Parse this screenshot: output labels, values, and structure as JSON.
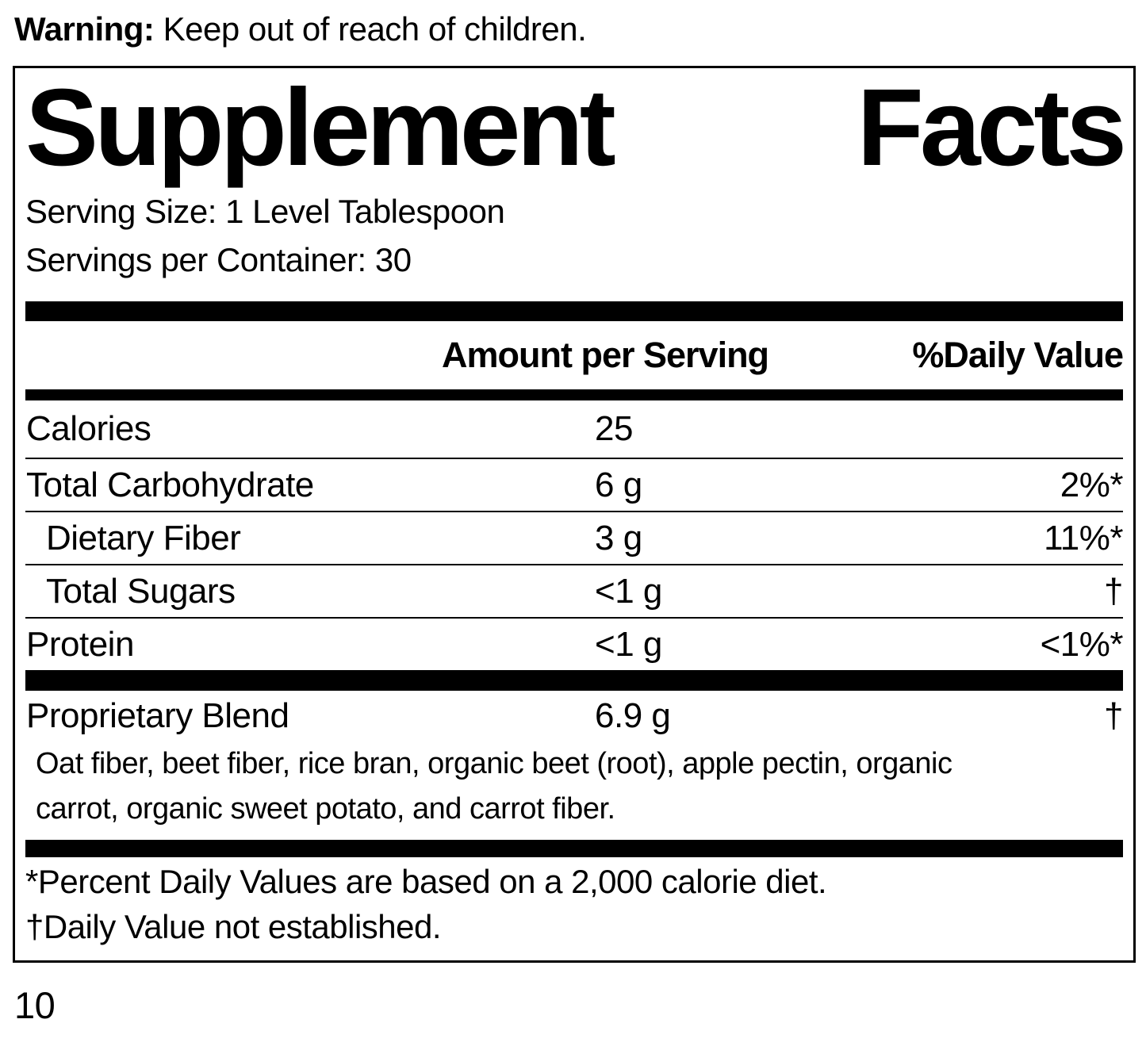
{
  "colors": {
    "text": "#000000",
    "background": "#ffffff"
  },
  "warning": {
    "label": "Warning:",
    "text": " Keep out of reach of children."
  },
  "panel": {
    "title_word1": "Supplement",
    "title_word2": "Facts",
    "serving_size": "Serving Size: 1 Level Tablespoon",
    "servings_per_container": "Servings per Container: 30",
    "columns": {
      "amount": "Amount per Serving",
      "daily_value": "%Daily Value"
    },
    "rows": [
      {
        "label": "Calories",
        "amount": "25",
        "dv": ""
      },
      {
        "label": "Total Carbohydrate",
        "amount": "6 g",
        "dv": "2%*"
      },
      {
        "label": "Dietary Fiber",
        "amount": "3 g",
        "dv": "11%*"
      },
      {
        "label": "Total Sugars",
        "amount": "<1 g",
        "dv": "†"
      },
      {
        "label": "Protein",
        "amount": "<1 g",
        "dv": "<1%*"
      }
    ],
    "blend": {
      "label": "Proprietary Blend",
      "amount": "6.9 g",
      "dv": "†",
      "description_line1": "Oat fiber, beet fiber, rice bran, organic beet (root), apple pectin, organic",
      "description_line2": "carrot, organic sweet potato, and carrot fiber."
    },
    "footnotes": {
      "percent_dv": "*Percent Daily Values are based on a 2,000 calorie diet.",
      "dagger": "†Daily Value not established."
    }
  },
  "page_number": "10"
}
